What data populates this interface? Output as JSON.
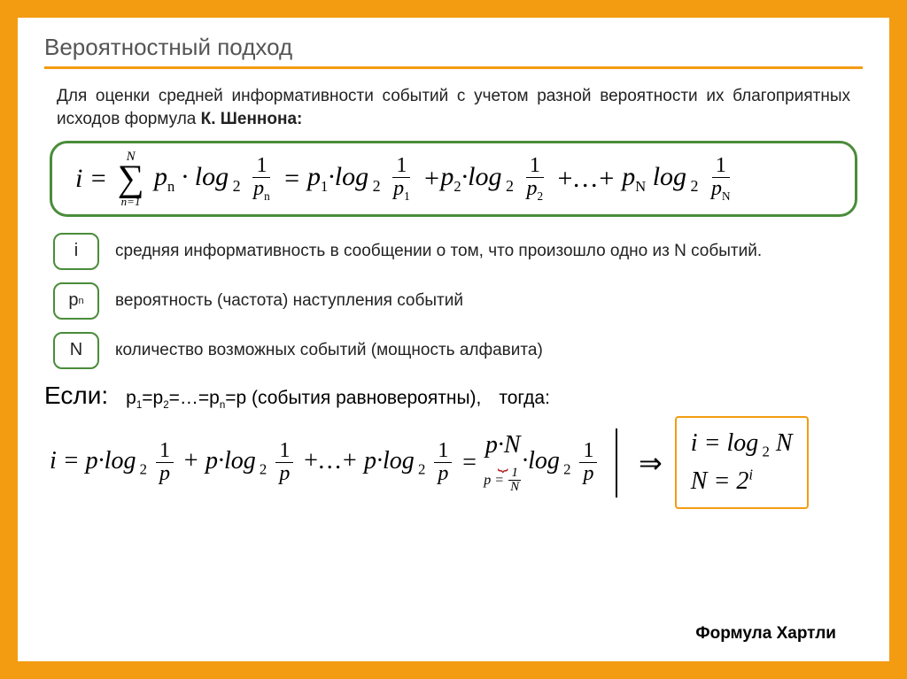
{
  "colors": {
    "page_bg": "#f39c12",
    "slide_bg": "#ffffff",
    "title_color": "#555555",
    "underline_color": "#f39c12",
    "text_color": "#222222",
    "formula_border": "#4a8c3a",
    "badge_border": "#4a8c3a",
    "result_border": "#f39c12",
    "brace_color": "#b02020"
  },
  "title": "Вероятностный подход",
  "intro_prefix": "Для оценки средней информативности событий с учетом разной вероятности их благоприятных исходов формула ",
  "intro_bold": "К. Шеннона:",
  "formula": {
    "lhs": "i =",
    "sigma_top": "N",
    "sigma_bot": "n=1",
    "term_p": "p",
    "log": "log",
    "log_base": "2",
    "frac_num": "1",
    "ellipsis": "+…+"
  },
  "defs": [
    {
      "badge": "i",
      "text": "средняя информативность в сообщении о том, что произошло одно из  N событий."
    },
    {
      "badge_html": "p<sub>n</sub>",
      "text": "вероятность (частота) наступления событий"
    },
    {
      "badge": "N",
      "text": "количество возможных событий (мощность алфавита)"
    }
  ],
  "if_label": "Если:",
  "if_cond_html": "p<sub>1</sub>=p<sub>2</sub>=…=p<sub>n</sub>=p (события равновероятны),",
  "if_then": "тогда:",
  "brace_label_lhs": "p =",
  "brace_frac_num": "1",
  "brace_frac_den": "N",
  "result_line1_html": "i = log<sub class='sub-i'> 2</sub> N",
  "result_line2_html": "N = 2<sup style='font-size:0.6em'>i</sup>",
  "hartley": "Формула Хартли"
}
